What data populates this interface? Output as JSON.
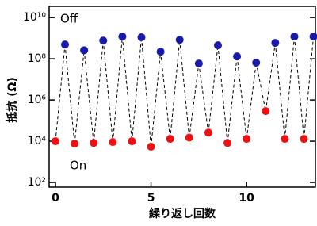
{
  "chart_data": {
    "type": "scatter",
    "x_label": "繰り返し回数",
    "y_label": "抵抗 (Ω)",
    "series": [
      {
        "name": "On",
        "color": "#ee1111",
        "x": [
          0,
          1,
          2,
          3,
          4,
          5,
          6,
          7,
          8,
          9,
          10,
          11,
          12,
          13
        ],
        "values": [
          10000,
          7600,
          8300,
          9100,
          10000,
          5400,
          13000,
          15000,
          26000,
          8300,
          13000,
          290000,
          13000,
          13000
        ]
      },
      {
        "name": "Off",
        "color": "#1a1aa8",
        "x": [
          0.5,
          1.5,
          2.5,
          3.5,
          4.5,
          5.5,
          6.5,
          7.5,
          8.5,
          9.5,
          10.5,
          11.5,
          12.5,
          13.5
        ],
        "values": [
          490000000,
          260000000,
          760000000,
          1200000000,
          1100000000,
          220000000,
          830000000,
          59000000,
          450000000,
          130000000,
          65000000,
          590000000,
          1200000000,
          1200000000
        ]
      }
    ],
    "xlim": [
      -0.33,
      13.6
    ],
    "xticks": [
      0,
      5,
      10
    ],
    "ylim": [
      59,
      35000000000
    ],
    "log_y": true,
    "yticks": [
      {
        "value": 100,
        "label": "10²"
      },
      {
        "value": 10000,
        "label": "10⁴"
      },
      {
        "value": 1000000,
        "label": "10⁶"
      },
      {
        "value": 100000000,
        "label": "10⁸"
      },
      {
        "value": 10000000000,
        "label": "10¹⁰"
      }
    ]
  }
}
